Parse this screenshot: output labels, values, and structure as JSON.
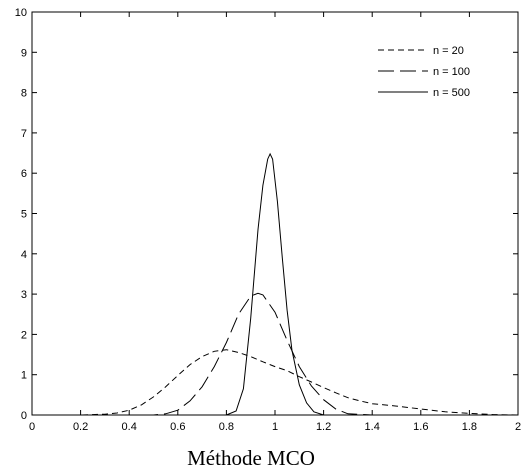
{
  "chart_data": {
    "type": "line",
    "title": "",
    "xlabel": "Méthode MCO",
    "ylabel": "",
    "xlim": [
      0,
      2
    ],
    "ylim": [
      0,
      10
    ],
    "xticks": [
      "0",
      "0.2",
      "0.4",
      "0.6",
      "0.8",
      "1",
      "1.2",
      "1.4",
      "1.6",
      "1.8",
      "2"
    ],
    "yticks": [
      "0",
      "1",
      "2",
      "3",
      "4",
      "5",
      "6",
      "7",
      "8",
      "9",
      "10"
    ],
    "grid": false,
    "legend_position": "top-right",
    "series": [
      {
        "name": "n = 20",
        "style": "short-dash",
        "x": [
          0.0,
          0.1,
          0.2,
          0.3,
          0.35,
          0.4,
          0.45,
          0.5,
          0.55,
          0.6,
          0.65,
          0.7,
          0.75,
          0.8,
          0.85,
          0.9,
          0.95,
          1.0,
          1.05,
          1.1,
          1.15,
          1.2,
          1.25,
          1.3,
          1.35,
          1.4,
          1.45,
          1.5,
          1.6,
          1.7,
          1.8,
          1.9,
          2.0
        ],
        "y": [
          0.0,
          0.0,
          0.0,
          0.02,
          0.05,
          0.12,
          0.25,
          0.45,
          0.7,
          0.98,
          1.25,
          1.45,
          1.58,
          1.62,
          1.55,
          1.45,
          1.32,
          1.2,
          1.1,
          0.95,
          0.82,
          0.68,
          0.55,
          0.43,
          0.35,
          0.28,
          0.25,
          0.22,
          0.15,
          0.08,
          0.04,
          0.01,
          0.0
        ]
      },
      {
        "name": "n = 100",
        "style": "long-dash",
        "x": [
          0.0,
          0.4,
          0.5,
          0.55,
          0.6,
          0.65,
          0.7,
          0.75,
          0.8,
          0.85,
          0.9,
          0.93,
          0.95,
          1.0,
          1.05,
          1.1,
          1.15,
          1.2,
          1.25,
          1.3,
          1.4,
          2.0
        ],
        "y": [
          0.0,
          0.0,
          0.0,
          0.03,
          0.12,
          0.35,
          0.7,
          1.2,
          1.8,
          2.5,
          2.95,
          3.02,
          2.98,
          2.55,
          1.85,
          1.2,
          0.72,
          0.38,
          0.15,
          0.03,
          0.0,
          0.0
        ]
      },
      {
        "name": "n = 500",
        "style": "solid",
        "x": [
          0.0,
          0.8,
          0.84,
          0.87,
          0.9,
          0.93,
          0.95,
          0.97,
          0.98,
          0.99,
          1.01,
          1.03,
          1.05,
          1.07,
          1.1,
          1.13,
          1.16,
          1.2,
          2.0
        ],
        "y": [
          0.0,
          0.0,
          0.1,
          0.65,
          2.4,
          4.6,
          5.7,
          6.35,
          6.48,
          6.35,
          5.3,
          3.9,
          2.6,
          1.6,
          0.75,
          0.3,
          0.08,
          0.0,
          0.0
        ]
      }
    ]
  }
}
